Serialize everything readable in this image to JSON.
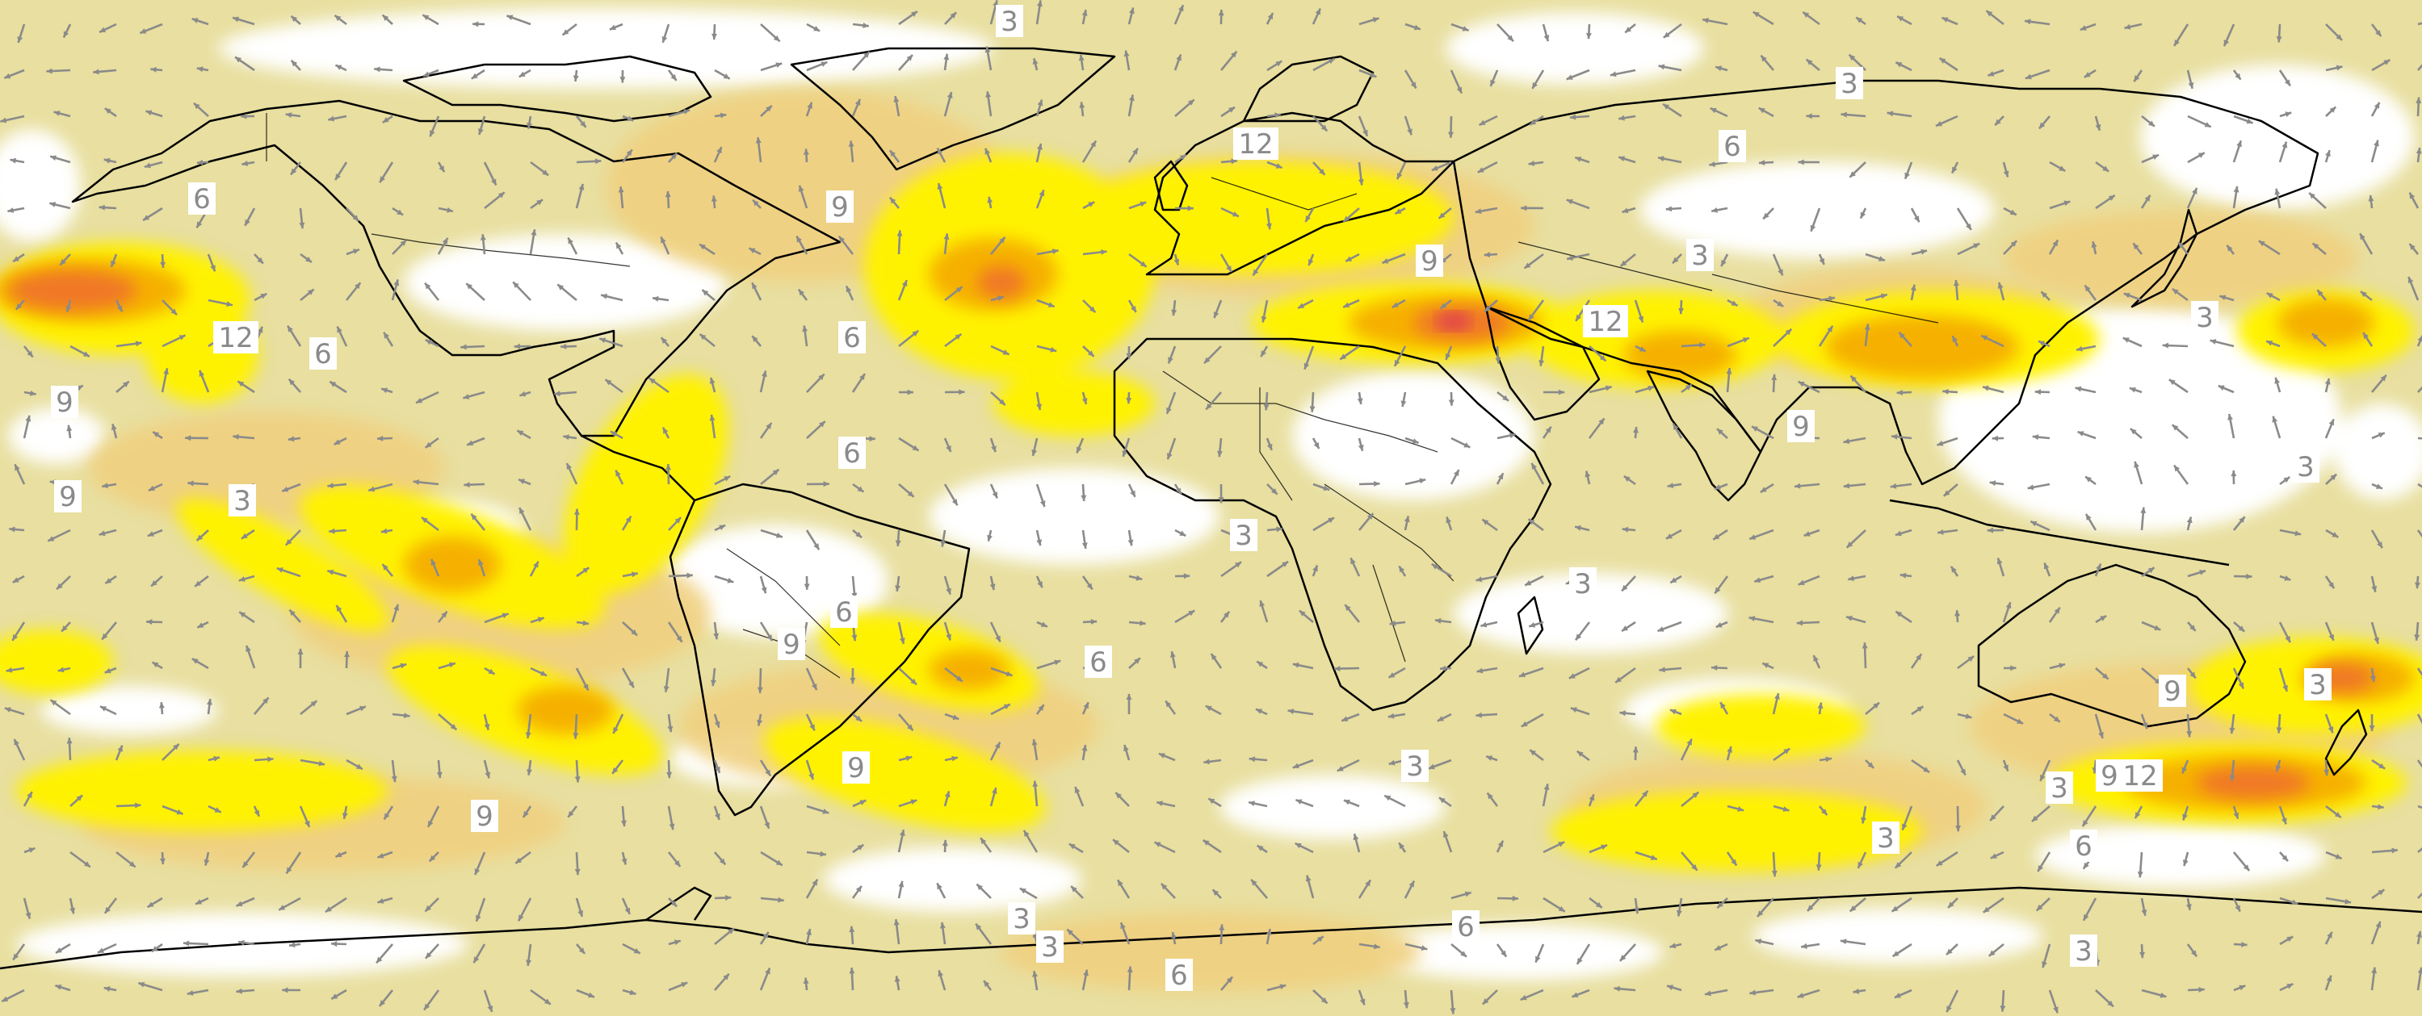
{
  "map": {
    "projection": "equirectangular",
    "colors": {
      "level_0_3": "#ffffff",
      "level_3_6": "#e8dfa0",
      "level_6_9": "#f0d080",
      "level_9_12": "#fff200",
      "level_12_15": "#f6b000",
      "level_15_18": "#f07828",
      "level_18_plus": "#e04050",
      "arrow": "#8a8a8a",
      "coastline": "#000000",
      "label_text": "#8a8a8a"
    },
    "contour_labels": [
      "3",
      "3",
      "6",
      "12",
      "9",
      "6",
      "3",
      "6",
      "9",
      "3",
      "12",
      "9",
      "6",
      "3",
      "12",
      "6",
      "9",
      "3",
      "9",
      "6",
      "3",
      "3",
      "3",
      "9",
      "6",
      "9",
      "3",
      "9",
      "6",
      "9",
      "12",
      "9",
      "3",
      "3",
      "3",
      "3",
      "6",
      "6",
      "3"
    ],
    "vector_field": {
      "description_units": "wind vectors",
      "arrow_color": "#8a8a8a"
    }
  }
}
